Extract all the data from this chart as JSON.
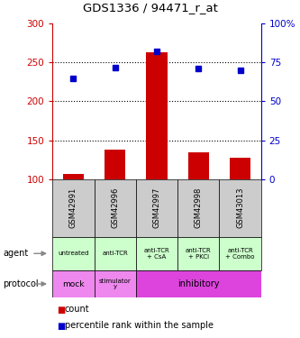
{
  "title": "GDS1336 / 94471_r_at",
  "samples": [
    "GSM42991",
    "GSM42996",
    "GSM42997",
    "GSM42998",
    "GSM43013"
  ],
  "bar_values": [
    107,
    138,
    263,
    135,
    127
  ],
  "dot_percentiles": [
    65,
    72,
    82,
    71,
    70
  ],
  "bar_color": "#cc0000",
  "dot_color": "#0000cc",
  "left_ylim": [
    100,
    300
  ],
  "left_yticks": [
    100,
    150,
    200,
    250,
    300
  ],
  "right_ylim": [
    0,
    100
  ],
  "right_yticks": [
    0,
    25,
    50,
    75,
    100
  ],
  "right_yticklabels": [
    "0",
    "25",
    "50",
    "75",
    "100%"
  ],
  "left_ycolor": "#cc0000",
  "right_ycolor": "#0000cc",
  "agent_labels": [
    "untreated",
    "anti-TCR",
    "anti-TCR\n+ CsA",
    "anti-TCR\n+ PKCi",
    "anti-TCR\n+ Combo"
  ],
  "agent_bg": "#ccffcc",
  "sample_bg": "#cccccc",
  "protocol_mock_bg": "#ee88ee",
  "protocol_stim_bg": "#ee88ee",
  "protocol_inhib_bg": "#dd44dd",
  "legend_red_label": "count",
  "legend_blue_label": "percentile rank within the sample",
  "arrow_color": "#888888"
}
